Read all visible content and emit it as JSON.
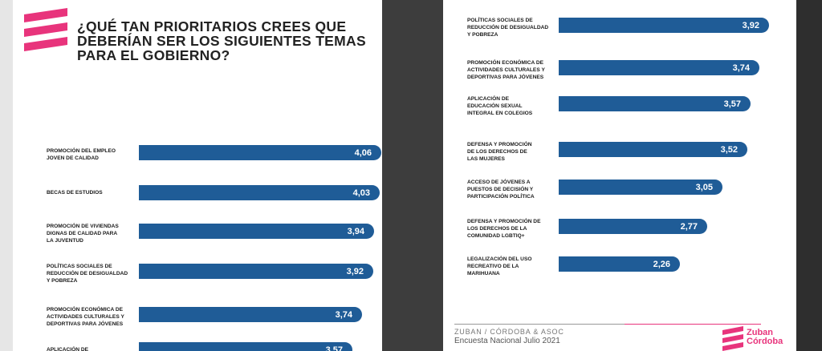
{
  "left_page": {
    "title": "¿QUÉ TAN PRIORITARIOS CREES QUE DEBERÍAN SER LOS SIGUIENTES TEMAS PARA EL GOBIERNO?"
  },
  "right_page": {
    "footer_brand": "ZUBAN / CÓRDOBA & ASOC",
    "footer_sub": "Encuesta Nacional Julio 2021",
    "logo_text": "Zuban\nCórdoba"
  },
  "colors": {
    "bar": "#1f5c97",
    "accent": "#e8347c"
  },
  "chart_data": [
    {
      "type": "bar",
      "orientation": "horizontal",
      "categories": [
        "PROMOCIÓN DEL EMPLEO\nJOVEN DE CALIDAD",
        " BECAS DE ESTUDIOS",
        "PROMOCIÓN DE VIVIENDAS\nDIGNAS DE CALIDAD PARA\nLA JUVENTUD",
        "POLÍTICAS SOCIALES DE\nREDUCCIÓN DE DESIGUALDAD\nY POBREZA",
        "PROMOCIÓN ECONÓMICA DE\nACTIVIDADES CULTURALES Y\nDEPORTIVAS PARA JÓVENES",
        "APLICACIÓN DE"
      ],
      "values": [
        4.06,
        4.03,
        3.94,
        3.92,
        3.74,
        3.57
      ],
      "value_labels": [
        "4,06",
        "4,03",
        "3,94",
        "3,92",
        "3,74",
        "3,57"
      ]
    },
    {
      "type": "bar",
      "orientation": "horizontal",
      "categories": [
        "POLÍTICAS SOCIALES DE\nREDUCCIÓN DE DESIGUALDAD\nY POBREZA",
        "PROMOCIÓN ECONÓMICA DE\nACTIVIDADES CULTURALES Y\nDEPORTIVAS PARA JÓVENES",
        "APLICACIÓN DE\nEDUCACIÓN SEXUAL\nINTEGRAL EN COLEGIOS",
        "DEFENSA Y PROMOCIÓN\nDE LOS DERECHOS DE\nLAS MUJERES",
        "ACCESO DE JÓVENES A\nPUESTOS DE DECISIÓN Y\nPARTICIPACIÓN POLÍTICA",
        "DEFENSA Y PROMOCIÓN DE\nLOS DERECHOS DE LA\nCOMUNIDAD LGBTIQ+",
        "LEGALIZACIÓN DEL USO\nRECREATIVO DE LA\nMARIHUANA"
      ],
      "values": [
        3.92,
        3.74,
        3.57,
        3.52,
        3.05,
        2.77,
        2.26
      ],
      "value_labels": [
        "3,92",
        "3,74",
        "3,57",
        "3,52",
        "3,05",
        "2,77",
        "2,26"
      ]
    }
  ]
}
